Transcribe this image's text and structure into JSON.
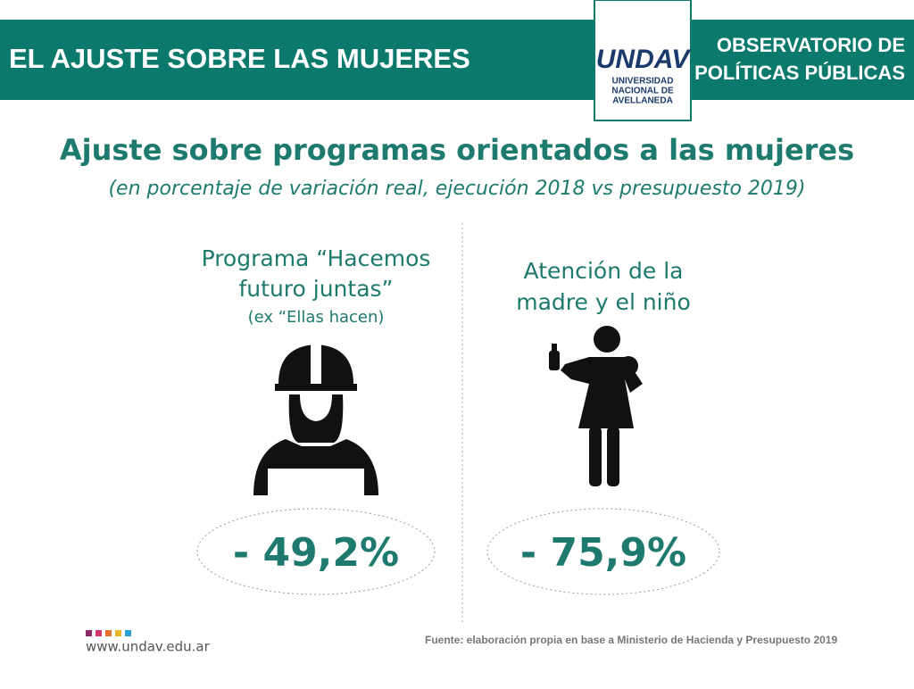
{
  "header": {
    "title": "EL AJUSTE SOBRE LAS MUJERES",
    "logo": {
      "mark": "UNDAV",
      "lines": [
        "UNIVERSIDAD",
        "NACIONAL DE",
        "AVELLANEDA"
      ]
    },
    "org": [
      "OBSERVATORIO DE",
      "POLÍTICAS PÚBLICAS"
    ]
  },
  "title": "Ajuste sobre programas orientados a las mujeres",
  "subtitle": "(en porcentaje de variación real, ejecución 2018 vs presupuesto 2019)",
  "items": [
    {
      "label": [
        "Programa “Hacemos",
        "futuro juntas”"
      ],
      "note": "(ex “Ellas hacen)",
      "value": "- 49,2%"
    },
    {
      "label": [
        "Atención de la",
        "madre y el niño"
      ],
      "value": "- 75,9%"
    }
  ],
  "footer": {
    "url": "www.undav.edu.ar",
    "source": "Fuente: elaboración propia en base a Ministerio de Hacienda y  Presupuesto 2019"
  }
}
